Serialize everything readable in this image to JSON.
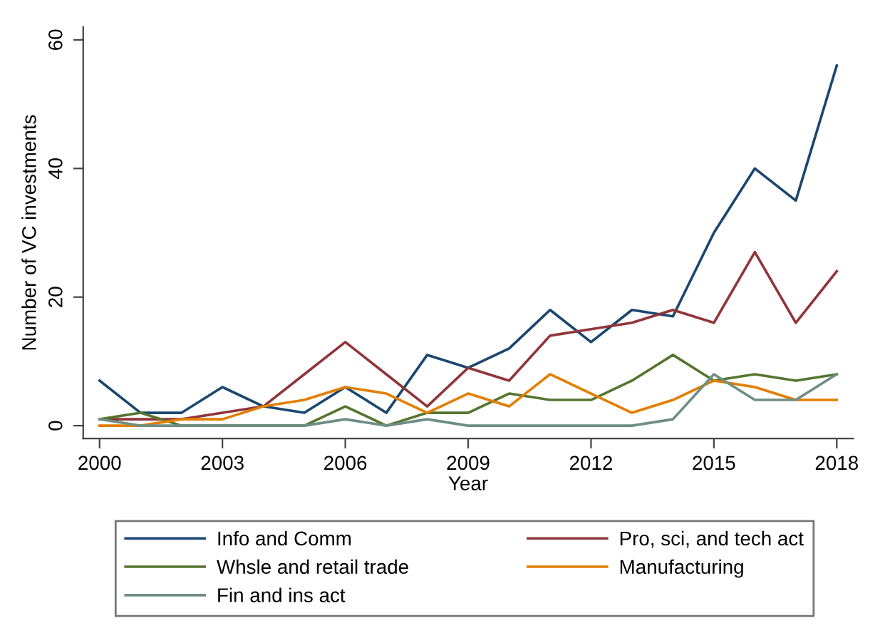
{
  "chart_data": {
    "type": "line",
    "xlabel": "Year",
    "ylabel": "Number of VC investments",
    "x": [
      2000,
      2001,
      2002,
      2003,
      2004,
      2005,
      2006,
      2007,
      2008,
      2009,
      2010,
      2011,
      2012,
      2013,
      2014,
      2015,
      2016,
      2017,
      2018
    ],
    "series": [
      {
        "name": "Info and Comm",
        "color": "#1a476f",
        "values": [
          7,
          2,
          2,
          6,
          3,
          2,
          6,
          2,
          11,
          9,
          12,
          18,
          13,
          18,
          17,
          30,
          40,
          35,
          56
        ]
      },
      {
        "name": "Pro, sci, and tech act",
        "color": "#90353b",
        "values": [
          1,
          1,
          1,
          2,
          3,
          8,
          13,
          8,
          3,
          9,
          7,
          14,
          15,
          16,
          18,
          16,
          27,
          16,
          24
        ]
      },
      {
        "name": "Whsle and retail trade",
        "color": "#55752f",
        "values": [
          1,
          2,
          0,
          0,
          0,
          0,
          3,
          0,
          2,
          2,
          5,
          4,
          4,
          7,
          11,
          7,
          8,
          7,
          8
        ]
      },
      {
        "name": "Manufacturing",
        "color": "#e37e00",
        "values": [
          0,
          0,
          1,
          1,
          3,
          4,
          6,
          5,
          2,
          5,
          3,
          8,
          5,
          2,
          4,
          7,
          6,
          4,
          4
        ]
      },
      {
        "name": "Fin and ins act",
        "color": "#6e8e84",
        "values": [
          1,
          0,
          0,
          0,
          0,
          0,
          1,
          0,
          1,
          0,
          0,
          0,
          0,
          0,
          1,
          8,
          4,
          4,
          8
        ]
      }
    ],
    "xlim": [
      1999.6,
      2018.4
    ],
    "xticks": [
      2000,
      2003,
      2006,
      2009,
      2012,
      2015,
      2018
    ],
    "ylim": [
      -2,
      62
    ],
    "yticks": [
      0,
      20,
      40,
      60
    ],
    "grid": false,
    "legend": "bottom",
    "marker": "none",
    "line_style": "solid"
  }
}
